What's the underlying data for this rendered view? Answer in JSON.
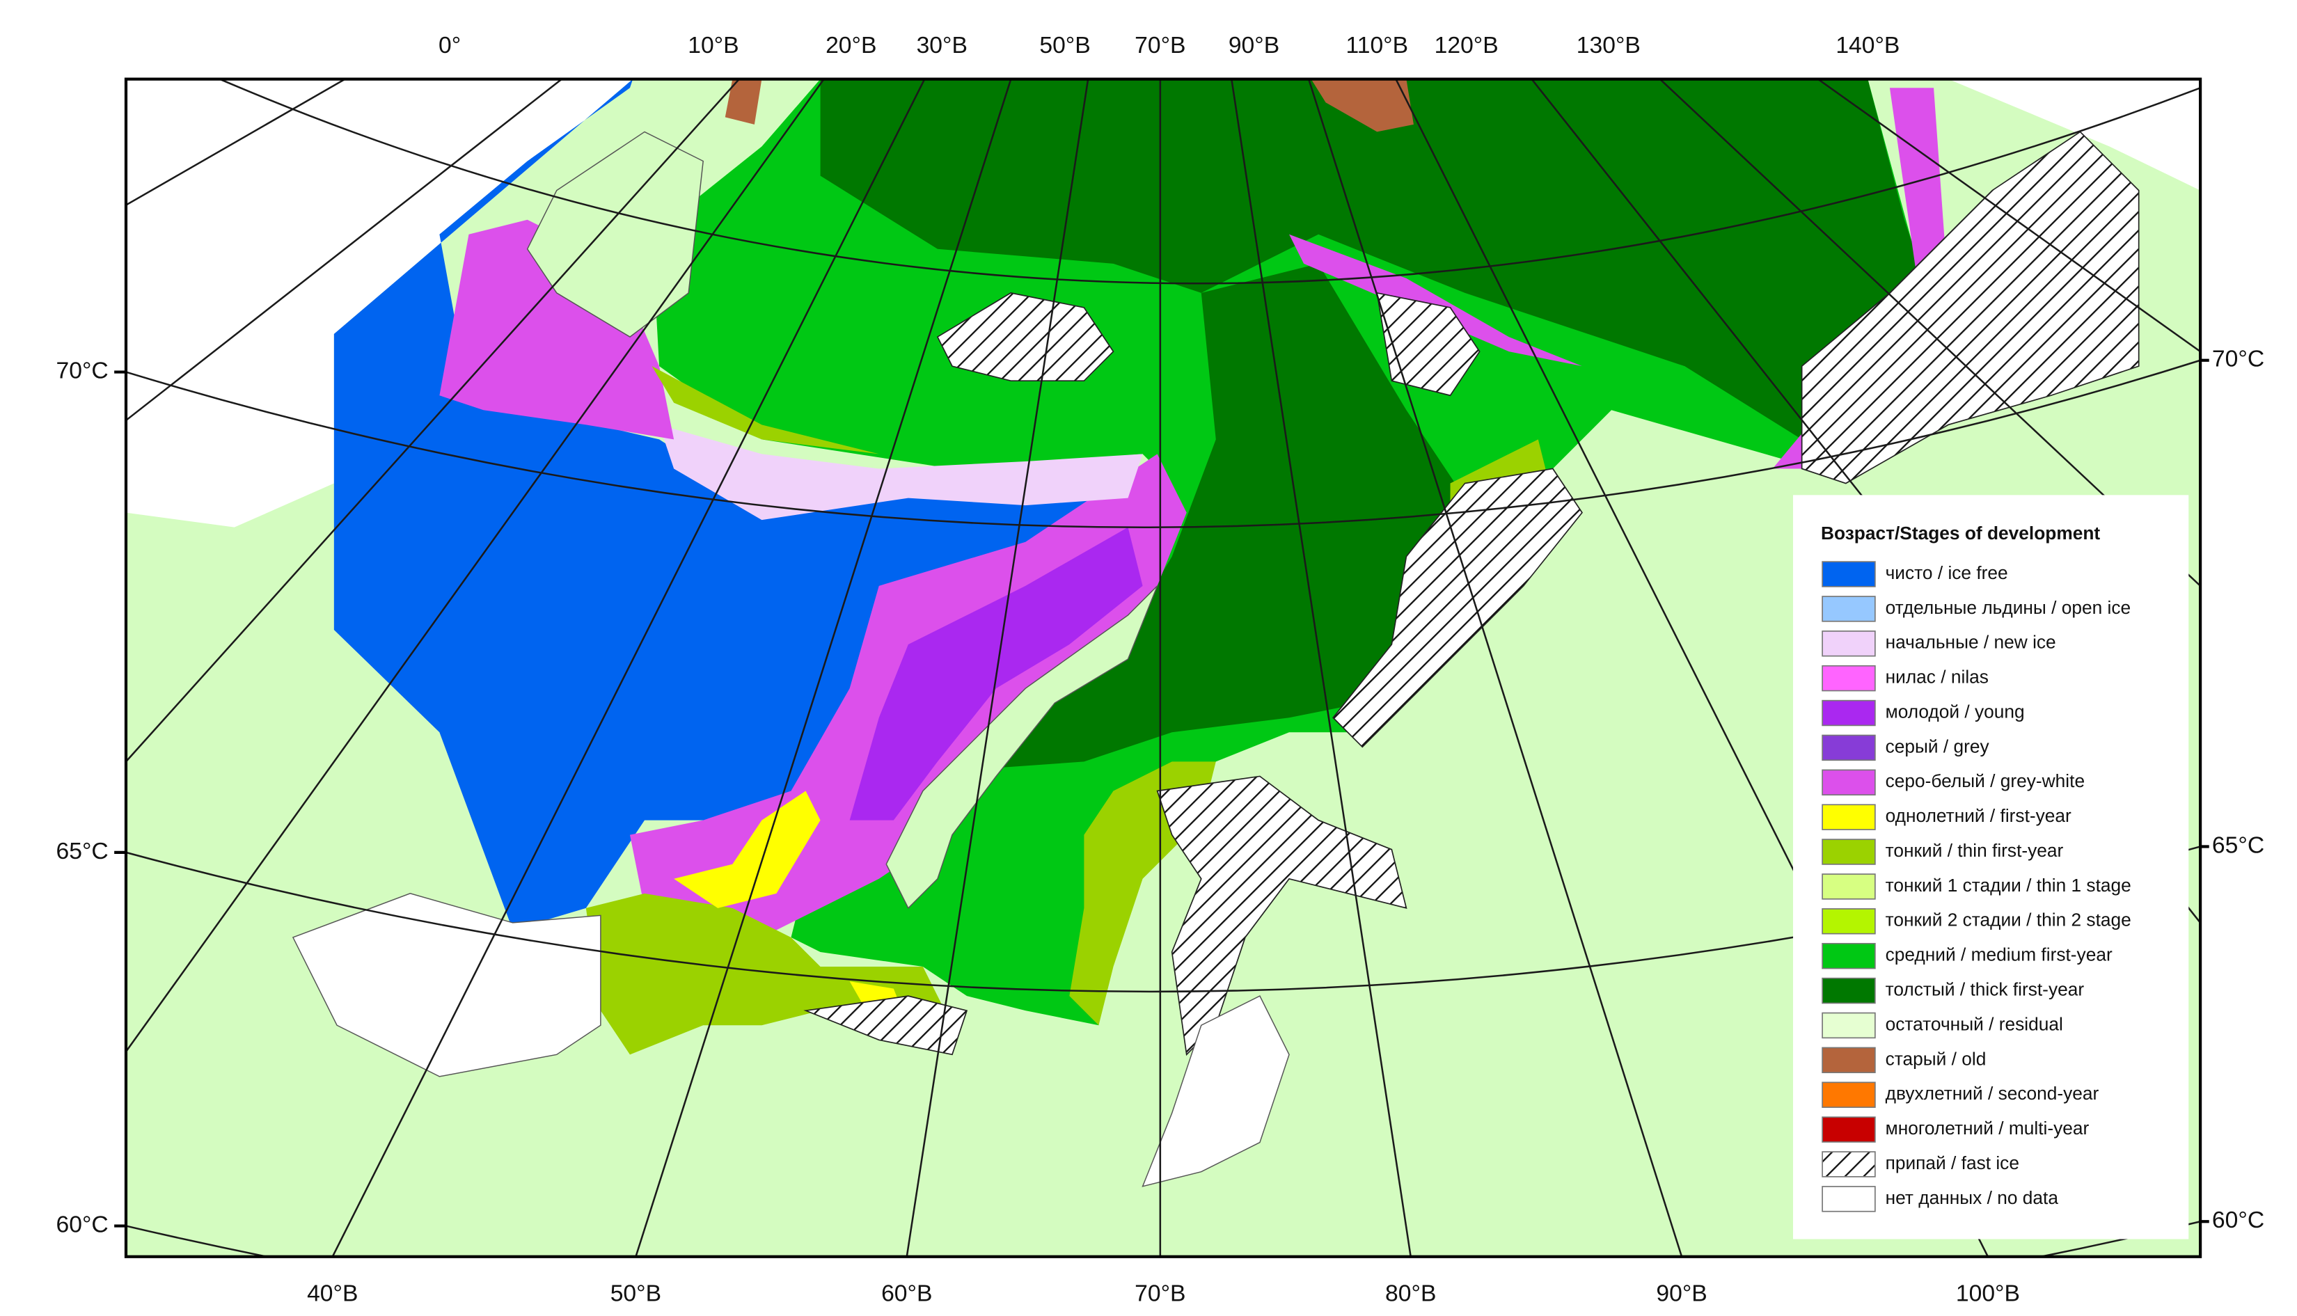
{
  "map": {
    "top_labels": [
      "0°",
      "10°В",
      "20°В",
      "30°В",
      "50°В",
      "70°В",
      "90°В",
      "110°В",
      "120°В",
      "130°В",
      "140°В"
    ],
    "bottom_labels": [
      "40°В",
      "50°В",
      "60°В",
      "70°В",
      "80°В",
      "90°В",
      "100°В"
    ],
    "left_labels": [
      "70°С",
      "65°С",
      "60°С"
    ],
    "right_labels": [
      "70°С",
      "65°С",
      "60°С"
    ]
  },
  "legend": {
    "title": "Возраст/Stages of development",
    "items": [
      {
        "label": "чисто / ice free",
        "color": "#0064f0"
      },
      {
        "label": "отдельные льдины / open ice",
        "color": "#96c8ff"
      },
      {
        "label": "начальные / new ice",
        "color": "#f0d2fa"
      },
      {
        "label": "нилас / nilas",
        "color": "#ff64ff"
      },
      {
        "label": "молодой / young",
        "color": "#aa28f0"
      },
      {
        "label": "серый / grey",
        "color": "#873cd7"
      },
      {
        "label": "серо-белый / grey-white",
        "color": "#dc50eb"
      },
      {
        "label": "однолетний / first-year",
        "color": "#ffff00"
      },
      {
        "label": "тонкий / thin first-year",
        "color": "#9bd200"
      },
      {
        "label": "тонкий 1 стадии / thin 1 stage",
        "color": "#d7ff82"
      },
      {
        "label": "тонкий 2 стадии / thin 2 stage",
        "color": "#b4f500"
      },
      {
        "label": "средний / medium first-year",
        "color": "#00c814"
      },
      {
        "label": "толстый / thick first-year",
        "color": "#007800"
      },
      {
        "label": "остаточный / residual",
        "color": "#e6ffd2"
      },
      {
        "label": "старый / old",
        "color": "#b4643c"
      },
      {
        "label": "двухлетний / second-year",
        "color": "#ff7800"
      },
      {
        "label": "многолетний / multi-year",
        "color": "#c80000"
      },
      {
        "label": "припай / fast ice",
        "color": "#ffffff",
        "pattern": "hatch"
      },
      {
        "label": "нет данных / no data",
        "color": "#ffffff"
      }
    ]
  }
}
